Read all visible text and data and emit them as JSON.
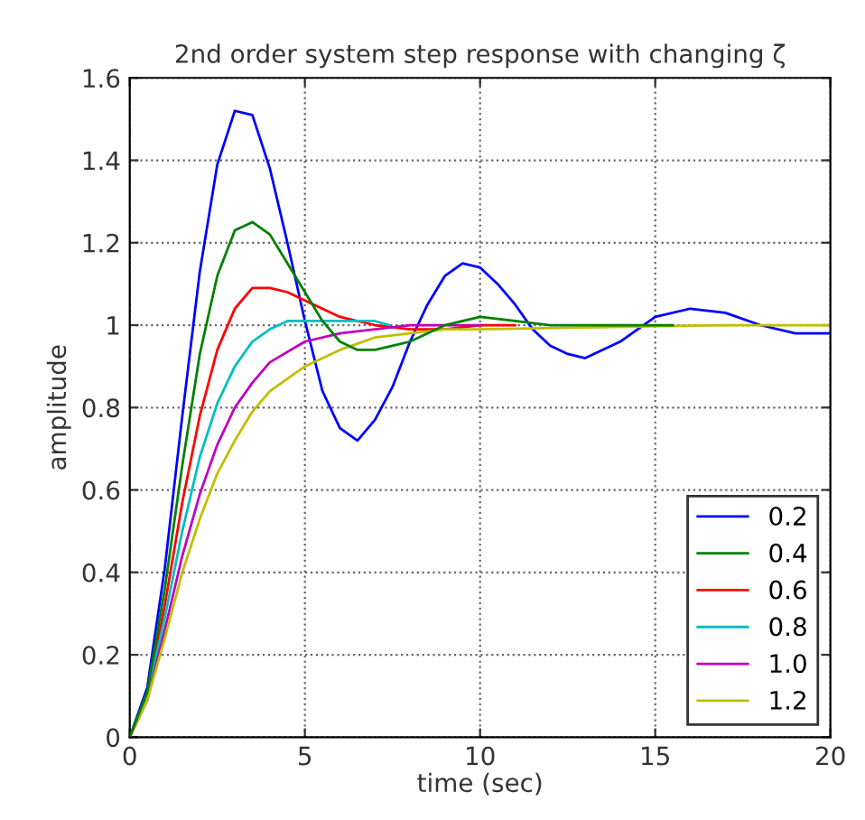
{
  "chart_data": {
    "type": "line",
    "title": "2nd order system step response with changing ζ",
    "xlabel": "time (sec)",
    "ylabel": "amplitude",
    "xlim": [
      0,
      20
    ],
    "ylim": [
      0,
      1.6
    ],
    "xticks": [
      0,
      5,
      10,
      15,
      20
    ],
    "yticks": [
      0,
      0.2,
      0.4,
      0.6,
      0.8,
      1,
      1.2,
      1.4,
      1.6
    ],
    "grid": true,
    "legend": "bottom right",
    "line_style": "solid",
    "series": [
      {
        "name": "0.2",
        "color": "#0000ff",
        "x": [
          0,
          0.5,
          1,
          1.5,
          2,
          2.5,
          3,
          3.5,
          4,
          4.5,
          5,
          5.5,
          6,
          6.5,
          7,
          7.5,
          8,
          8.5,
          9,
          9.5,
          10,
          10.5,
          11,
          11.5,
          12,
          12.5,
          13,
          14,
          15,
          16,
          17,
          18,
          19,
          19.5,
          20
        ],
        "values": [
          0,
          0.12,
          0.41,
          0.78,
          1.13,
          1.39,
          1.52,
          1.51,
          1.38,
          1.2,
          1.01,
          0.84,
          0.75,
          0.72,
          0.77,
          0.85,
          0.96,
          1.05,
          1.12,
          1.15,
          1.14,
          1.1,
          1.05,
          0.99,
          0.95,
          0.93,
          0.92,
          0.96,
          1.02,
          1.04,
          1.03,
          1.0,
          0.98,
          0.98,
          0.98
        ]
      },
      {
        "name": "0.4",
        "color": "#008000",
        "x": [
          0,
          0.5,
          1,
          1.5,
          2,
          2.5,
          3,
          3.5,
          4,
          4.5,
          5,
          5.5,
          6,
          6.5,
          7,
          7.5,
          8,
          9,
          10,
          11,
          12,
          13,
          14,
          15.5
        ],
        "values": [
          0,
          0.11,
          0.36,
          0.66,
          0.93,
          1.12,
          1.23,
          1.25,
          1.22,
          1.15,
          1.08,
          1.01,
          0.96,
          0.94,
          0.94,
          0.95,
          0.96,
          1.0,
          1.02,
          1.01,
          1.0,
          1.0,
          1.0,
          1.0
        ]
      },
      {
        "name": "0.6",
        "color": "#ff0000",
        "x": [
          0,
          0.5,
          1,
          1.5,
          2,
          2.5,
          3,
          3.5,
          4,
          4.5,
          5,
          6,
          7,
          8,
          9,
          10,
          11
        ],
        "values": [
          0,
          0.1,
          0.32,
          0.57,
          0.78,
          0.94,
          1.04,
          1.09,
          1.09,
          1.08,
          1.06,
          1.02,
          1.0,
          0.99,
          0.99,
          1.0,
          1.0
        ]
      },
      {
        "name": "0.8",
        "color": "#00bfbf",
        "x": [
          0,
          0.5,
          1,
          1.5,
          2,
          2.5,
          3,
          3.5,
          4,
          4.5,
          5,
          5.5,
          6,
          7,
          7.4
        ],
        "values": [
          0,
          0.1,
          0.29,
          0.5,
          0.68,
          0.81,
          0.9,
          0.96,
          0.99,
          1.01,
          1.01,
          1.01,
          1.01,
          1.01,
          1.0
        ]
      },
      {
        "name": "1.0",
        "color": "#bf00bf",
        "x": [
          0,
          0.5,
          1,
          1.5,
          2,
          2.5,
          3,
          3.5,
          4,
          5,
          6,
          7,
          8,
          10
        ],
        "values": [
          0,
          0.09,
          0.26,
          0.44,
          0.59,
          0.71,
          0.8,
          0.86,
          0.91,
          0.96,
          0.98,
          0.99,
          1.0,
          1.0
        ]
      },
      {
        "name": "1.2",
        "color": "#bfbf00",
        "x": [
          0,
          0.5,
          1,
          1.5,
          2,
          2.5,
          3,
          3.5,
          4,
          5,
          6,
          7,
          8,
          9,
          10,
          17,
          20
        ],
        "values": [
          0,
          0.09,
          0.24,
          0.4,
          0.53,
          0.64,
          0.72,
          0.79,
          0.84,
          0.9,
          0.94,
          0.97,
          0.98,
          0.99,
          0.99,
          1.0,
          1.0
        ]
      }
    ]
  }
}
